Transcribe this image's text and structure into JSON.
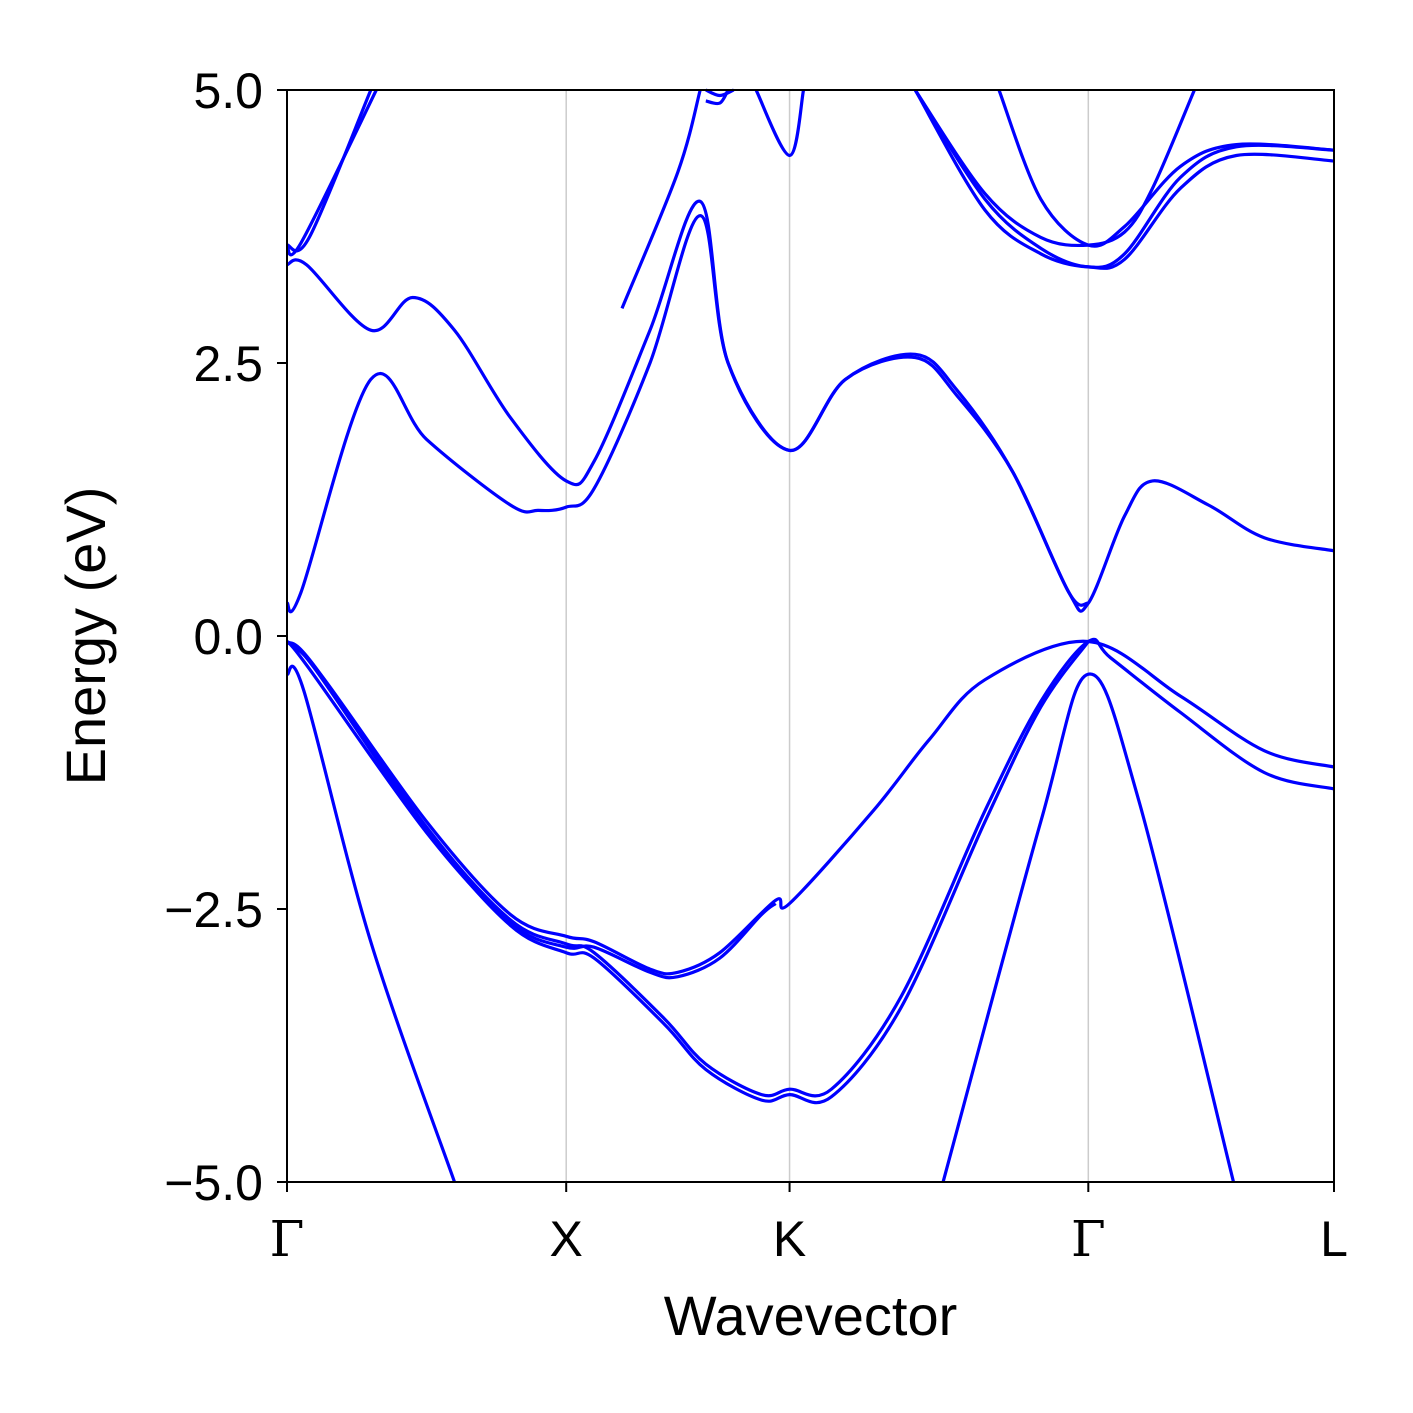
{
  "chart_data": {
    "type": "line",
    "title": "",
    "xlabel": "Wavevector",
    "ylabel": "Energy (eV)",
    "ylim": [
      -5.0,
      5.0
    ],
    "xlim": [
      0,
      3.75
    ],
    "grid": "vertical lines at high-symmetry points",
    "line_color": "#0000ff",
    "grid_color": "#cccccc",
    "x_ticks": [
      {
        "label": "Γ",
        "value": 0.0
      },
      {
        "label": "X",
        "value": 1.0
      },
      {
        "label": "K",
        "value": 1.8
      },
      {
        "label": "Γ",
        "value": 2.87
      },
      {
        "label": "L",
        "value": 3.75
      }
    ],
    "y_ticks": [
      {
        "label": "5.0",
        "value": 5.0
      },
      {
        "label": "2.5",
        "value": 2.5
      },
      {
        "label": "0.0",
        "value": 0.0
      },
      {
        "label": "−2.5",
        "value": -2.5
      },
      {
        "label": "−5.0",
        "value": -5.0
      }
    ],
    "series": [
      {
        "values": [
          [
            0,
            -0.35
          ],
          [
            0.06,
            -0.5
          ],
          [
            0.3,
            -2.8
          ],
          [
            0.6,
            -5.0
          ]
        ]
      },
      {
        "values": [
          [
            2.35,
            -5.0
          ],
          [
            2.7,
            -1.7
          ],
          [
            2.87,
            -0.35
          ],
          [
            3.05,
            -1.5
          ],
          [
            3.39,
            -5.0
          ]
        ]
      },
      {
        "values": [
          [
            0,
            -0.05
          ],
          [
            0.12,
            -0.35
          ],
          [
            0.5,
            -1.7
          ],
          [
            0.8,
            -2.55
          ],
          [
            1.0,
            -2.75
          ],
          [
            1.1,
            -2.8
          ],
          [
            1.3,
            -3.05
          ],
          [
            1.4,
            -3.08
          ],
          [
            1.55,
            -2.9
          ],
          [
            1.75,
            -2.42
          ],
          [
            1.8,
            -2.45
          ],
          [
            2.1,
            -1.6
          ],
          [
            2.3,
            -0.95
          ],
          [
            2.5,
            -0.4
          ],
          [
            2.87,
            -0.05
          ],
          [
            3.2,
            -0.55
          ],
          [
            3.5,
            -1.05
          ],
          [
            3.75,
            -1.2
          ]
        ]
      },
      {
        "values": [
          [
            0,
            -0.05
          ],
          [
            0.08,
            -0.3
          ],
          [
            0.5,
            -1.8
          ],
          [
            0.8,
            -2.63
          ],
          [
            1.0,
            -2.85
          ],
          [
            1.1,
            -2.85
          ],
          [
            1.3,
            -3.08
          ],
          [
            1.4,
            -3.12
          ],
          [
            1.55,
            -2.95
          ],
          [
            1.7,
            -2.55
          ],
          [
            1.75,
            -2.45
          ]
        ]
      },
      {
        "values": [
          [
            0,
            -0.05
          ],
          [
            0.1,
            -0.28
          ],
          [
            0.5,
            -1.75
          ],
          [
            0.8,
            -2.6
          ],
          [
            1.0,
            -2.82
          ],
          [
            1.1,
            -2.9
          ],
          [
            1.35,
            -3.5
          ],
          [
            1.5,
            -3.92
          ],
          [
            1.7,
            -4.2
          ],
          [
            1.8,
            -4.15
          ],
          [
            1.95,
            -4.15
          ],
          [
            2.2,
            -3.3
          ],
          [
            2.5,
            -1.6
          ],
          [
            2.7,
            -0.6
          ],
          [
            2.87,
            -0.05
          ],
          [
            2.95,
            -0.2
          ],
          [
            3.2,
            -0.7
          ],
          [
            3.5,
            -1.25
          ],
          [
            3.75,
            -1.4
          ]
        ]
      },
      {
        "values": [
          [
            0,
            -0.05
          ],
          [
            0.1,
            -0.3
          ],
          [
            0.5,
            -1.78
          ],
          [
            0.8,
            -2.65
          ],
          [
            1.0,
            -2.9
          ],
          [
            1.1,
            -2.95
          ],
          [
            1.35,
            -3.55
          ],
          [
            1.5,
            -3.97
          ],
          [
            1.7,
            -4.25
          ],
          [
            1.8,
            -4.2
          ],
          [
            1.95,
            -4.22
          ],
          [
            2.2,
            -3.4
          ],
          [
            2.5,
            -1.7
          ],
          [
            2.7,
            -0.65
          ],
          [
            2.87,
            -0.05
          ]
        ]
      },
      {
        "values": [
          [
            0,
            0.3
          ],
          [
            0.05,
            0.4
          ],
          [
            0.3,
            2.35
          ],
          [
            0.5,
            1.8
          ],
          [
            0.8,
            1.2
          ],
          [
            0.9,
            1.15
          ],
          [
            1.0,
            1.18
          ],
          [
            1.1,
            1.35
          ],
          [
            1.3,
            2.5
          ],
          [
            1.48,
            3.85
          ],
          [
            1.58,
            2.5
          ],
          [
            1.8,
            1.7
          ],
          [
            2.0,
            2.35
          ],
          [
            2.25,
            2.55
          ],
          [
            2.4,
            2.2
          ],
          [
            2.6,
            1.5
          ],
          [
            2.8,
            0.4
          ],
          [
            2.87,
            0.3
          ],
          [
            3.0,
            1.1
          ],
          [
            3.1,
            1.42
          ],
          [
            3.3,
            1.2
          ],
          [
            3.5,
            0.9
          ],
          [
            3.75,
            0.78
          ]
        ]
      },
      {
        "values": [
          [
            0,
            3.4
          ],
          [
            0.07,
            3.4
          ],
          [
            0.3,
            2.8
          ],
          [
            0.45,
            3.1
          ],
          [
            0.6,
            2.8
          ],
          [
            0.8,
            2.0
          ],
          [
            1.0,
            1.42
          ],
          [
            1.1,
            1.6
          ],
          [
            1.3,
            2.8
          ],
          [
            1.48,
            3.98
          ],
          [
            1.58,
            2.5
          ],
          [
            1.8,
            1.7
          ],
          [
            2.0,
            2.35
          ],
          [
            2.25,
            2.58
          ],
          [
            2.4,
            2.25
          ],
          [
            2.6,
            1.5
          ],
          [
            2.8,
            0.4
          ],
          [
            2.87,
            0.3
          ]
        ]
      },
      {
        "values": [
          [
            0,
            3.58
          ],
          [
            0.05,
            3.6
          ],
          [
            0.32,
            5.0
          ]
        ]
      },
      {
        "values": [
          [
            0,
            3.58
          ],
          [
            0.08,
            3.65
          ],
          [
            0.3,
            5.0
          ]
        ]
      },
      {
        "values": [
          [
            1.2,
            3.0
          ],
          [
            1.4,
            4.25
          ],
          [
            1.48,
            5.0
          ]
        ]
      },
      {
        "values": [
          [
            1.5,
            5.0
          ],
          [
            1.55,
            4.95
          ],
          [
            1.6,
            5.0
          ]
        ]
      },
      {
        "values": [
          [
            1.5,
            4.9
          ],
          [
            1.55,
            4.88
          ],
          [
            1.58,
            5.0
          ]
        ]
      },
      {
        "values": [
          [
            1.68,
            5.0
          ],
          [
            1.8,
            4.4
          ],
          [
            1.85,
            5.0
          ]
        ]
      },
      {
        "values": [
          [
            2.25,
            5.0
          ],
          [
            2.5,
            4.0
          ],
          [
            2.7,
            3.55
          ],
          [
            2.87,
            3.38
          ],
          [
            3.0,
            3.5
          ],
          [
            3.2,
            4.2
          ],
          [
            3.4,
            4.48
          ],
          [
            3.75,
            4.45
          ]
        ]
      },
      {
        "values": [
          [
            2.25,
            5.0
          ],
          [
            2.5,
            3.9
          ],
          [
            2.7,
            3.5
          ],
          [
            2.87,
            3.38
          ],
          [
            3.0,
            3.45
          ],
          [
            3.2,
            4.1
          ],
          [
            3.4,
            4.4
          ],
          [
            3.75,
            4.35
          ]
        ]
      },
      {
        "values": [
          [
            2.25,
            5.0
          ],
          [
            2.5,
            4.05
          ],
          [
            2.7,
            3.65
          ],
          [
            2.87,
            3.58
          ],
          [
            3.0,
            3.7
          ],
          [
            3.1,
            4.1
          ],
          [
            3.25,
            5.0
          ]
        ]
      },
      {
        "values": [
          [
            2.55,
            5.0
          ],
          [
            2.7,
            4.0
          ],
          [
            2.87,
            3.58
          ],
          [
            3.0,
            3.75
          ],
          [
            3.2,
            4.3
          ],
          [
            3.4,
            4.5
          ],
          [
            3.75,
            4.45
          ]
        ]
      }
    ]
  }
}
